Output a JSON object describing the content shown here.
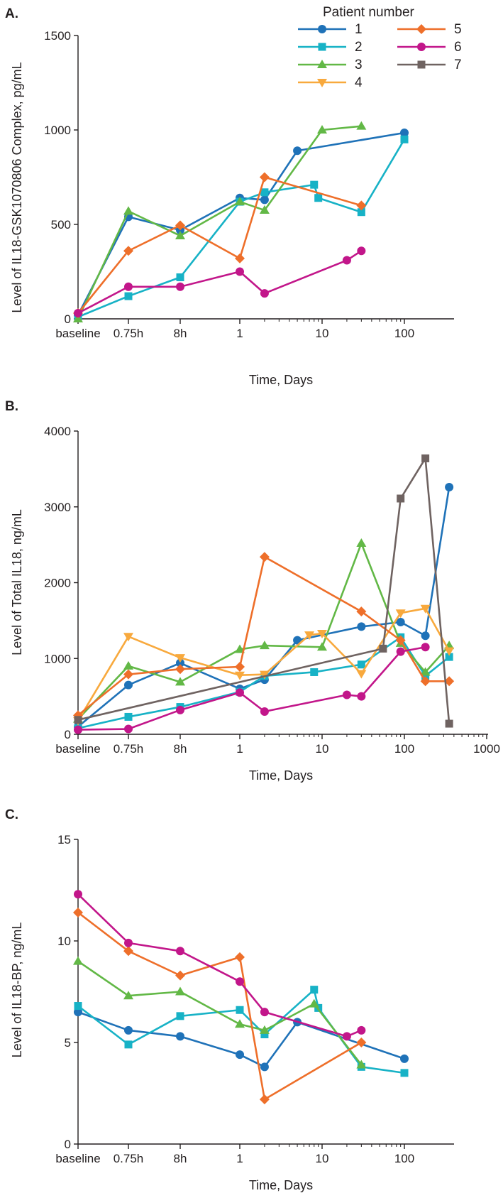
{
  "legend": {
    "title": "Patient number",
    "entries": [
      {
        "name": "1",
        "color": "#1f72b8",
        "marker": "circle"
      },
      {
        "name": "2",
        "color": "#17b2c6",
        "marker": "square"
      },
      {
        "name": "3",
        "color": "#62b846",
        "marker": "triangle-up"
      },
      {
        "name": "4",
        "color": "#f8a93d",
        "marker": "triangle-down"
      },
      {
        "name": "5",
        "color": "#ee6f2a",
        "marker": "diamond"
      },
      {
        "name": "6",
        "color": "#c2168a",
        "marker": "circle"
      },
      {
        "name": "7",
        "color": "#6f6361",
        "marker": "square"
      }
    ]
  },
  "chart_data": [
    {
      "panel": "A.",
      "type": "line",
      "ylabel": "Level of IL18-GSK1070806 Complex, pg/mL",
      "xlabel": "Time, Days",
      "x_scale": "log",
      "x_ticks": [
        {
          "label": "baseline"
        },
        {
          "label": "0.75h"
        },
        {
          "label": "8h"
        },
        {
          "label": "1"
        },
        {
          "label": "10"
        },
        {
          "label": "100"
        }
      ],
      "ylim": [
        0,
        1500
      ],
      "y_ticks": [
        0,
        500,
        1000,
        1500
      ],
      "series": [
        {
          "name": "1",
          "points": [
            [
              "baseline",
              20
            ],
            [
              "0.75h",
              540
            ],
            [
              "8h",
              470
            ],
            [
              1,
              640
            ],
            [
              2,
              630
            ],
            [
              5,
              890
            ],
            [
              100,
              985
            ]
          ]
        },
        {
          "name": "2",
          "points": [
            [
              "baseline",
              10
            ],
            [
              "0.75h",
              120
            ],
            [
              "8h",
              220
            ],
            [
              1,
              620
            ],
            [
              2,
              670
            ],
            [
              8,
              710
            ],
            [
              9,
              640
            ],
            [
              30,
              565
            ],
            [
              100,
              950
            ]
          ]
        },
        {
          "name": "3",
          "points": [
            [
              "baseline",
              0
            ],
            [
              "0.75h",
              570
            ],
            [
              "8h",
              440
            ],
            [
              1,
              620
            ],
            [
              2,
              575
            ],
            [
              10,
              1000
            ],
            [
              30,
              1020
            ]
          ]
        },
        {
          "name": "5",
          "points": [
            [
              "baseline",
              30
            ],
            [
              "0.75h",
              360
            ],
            [
              "8h",
              495
            ],
            [
              1,
              320
            ],
            [
              2,
              750
            ],
            [
              30,
              600
            ]
          ]
        },
        {
          "name": "6",
          "points": [
            [
              "baseline",
              30
            ],
            [
              "0.75h",
              170
            ],
            [
              "8h",
              170
            ],
            [
              1,
              250
            ],
            [
              2,
              135
            ],
            [
              20,
              310
            ],
            [
              30,
              360
            ]
          ]
        }
      ]
    },
    {
      "panel": "B.",
      "type": "line",
      "ylabel": "Level of Total IL18, ng/mL",
      "xlabel": "Time, Days",
      "x_scale": "log",
      "x_ticks": [
        {
          "label": "baseline"
        },
        {
          "label": "0.75h"
        },
        {
          "label": "8h"
        },
        {
          "label": "1"
        },
        {
          "label": "10"
        },
        {
          "label": "100"
        },
        {
          "label": "1000"
        }
      ],
      "ylim": [
        0,
        4000
      ],
      "y_ticks": [
        0,
        1000,
        2000,
        3000,
        4000
      ],
      "series": [
        {
          "name": "1",
          "points": [
            [
              "baseline",
              100
            ],
            [
              "0.75h",
              650
            ],
            [
              "8h",
              940
            ],
            [
              1,
              600
            ],
            [
              2,
              720
            ],
            [
              5,
              1240
            ],
            [
              30,
              1420
            ],
            [
              90,
              1480
            ],
            [
              180,
              1300
            ],
            [
              350,
              3260
            ]
          ]
        },
        {
          "name": "2",
          "points": [
            [
              "baseline",
              80
            ],
            [
              "0.75h",
              230
            ],
            [
              "8h",
              360
            ],
            [
              1,
              560
            ],
            [
              2,
              770
            ],
            [
              8,
              820
            ],
            [
              30,
              920
            ],
            [
              90,
              1280
            ],
            [
              180,
              770
            ],
            [
              350,
              1020
            ]
          ]
        },
        {
          "name": "3",
          "points": [
            [
              "baseline",
              200
            ],
            [
              "0.75h",
              900
            ],
            [
              "8h",
              690
            ],
            [
              1,
              1120
            ],
            [
              2,
              1170
            ],
            [
              10,
              1150
            ],
            [
              30,
              2520
            ],
            [
              90,
              1200
            ],
            [
              180,
              820
            ],
            [
              350,
              1170
            ]
          ]
        },
        {
          "name": "4",
          "points": [
            [
              "baseline",
              180
            ],
            [
              "0.75h",
              1290
            ],
            [
              "8h",
              1010
            ],
            [
              1,
              780
            ],
            [
              2,
              790
            ],
            [
              7,
              1310
            ],
            [
              10,
              1330
            ],
            [
              30,
              800
            ],
            [
              90,
              1600
            ],
            [
              180,
              1660
            ],
            [
              350,
              1100
            ]
          ]
        },
        {
          "name": "5",
          "points": [
            [
              "baseline",
              250
            ],
            [
              "0.75h",
              790
            ],
            [
              "8h",
              860
            ],
            [
              1,
              890
            ],
            [
              2,
              2340
            ],
            [
              30,
              1620
            ],
            [
              90,
              1240
            ],
            [
              180,
              700
            ],
            [
              350,
              700
            ]
          ]
        },
        {
          "name": "6",
          "points": [
            [
              "baseline",
              60
            ],
            [
              "0.75h",
              70
            ],
            [
              "8h",
              320
            ],
            [
              1,
              550
            ],
            [
              2,
              300
            ],
            [
              20,
              520
            ],
            [
              30,
              500
            ],
            [
              90,
              1090
            ],
            [
              180,
              1150
            ]
          ]
        },
        {
          "name": "7",
          "points": [
            [
              "baseline",
              190
            ],
            [
              55,
              1130
            ],
            [
              90,
              3110
            ],
            [
              180,
              3640
            ],
            [
              350,
              140
            ]
          ]
        }
      ]
    },
    {
      "panel": "C.",
      "type": "line",
      "ylabel": "Level of IL18-BP, ng/mL",
      "xlabel": "Time, Days",
      "x_scale": "log",
      "x_ticks": [
        {
          "label": "baseline"
        },
        {
          "label": "0.75h"
        },
        {
          "label": "8h"
        },
        {
          "label": "1"
        },
        {
          "label": "10"
        },
        {
          "label": "100"
        }
      ],
      "ylim": [
        0,
        15
      ],
      "y_ticks": [
        0,
        5,
        10,
        15
      ],
      "series": [
        {
          "name": "1",
          "points": [
            [
              "baseline",
              6.5
            ],
            [
              "0.75h",
              5.6
            ],
            [
              "8h",
              5.3
            ],
            [
              1,
              4.4
            ],
            [
              2,
              3.8
            ],
            [
              5,
              6.0
            ],
            [
              100,
              4.2
            ]
          ]
        },
        {
          "name": "2",
          "points": [
            [
              "baseline",
              6.8
            ],
            [
              "0.75h",
              4.9
            ],
            [
              "8h",
              6.3
            ],
            [
              1,
              6.6
            ],
            [
              2,
              5.4
            ],
            [
              8,
              7.6
            ],
            [
              9,
              6.7
            ],
            [
              30,
              3.8
            ],
            [
              100,
              3.5
            ]
          ]
        },
        {
          "name": "3",
          "points": [
            [
              "baseline",
              9.0
            ],
            [
              "0.75h",
              7.3
            ],
            [
              "8h",
              7.5
            ],
            [
              1,
              5.9
            ],
            [
              2,
              5.6
            ],
            [
              8,
              6.9
            ],
            [
              30,
              3.9
            ]
          ]
        },
        {
          "name": "5",
          "points": [
            [
              "baseline",
              11.4
            ],
            [
              "0.75h",
              9.5
            ],
            [
              "8h",
              8.3
            ],
            [
              1,
              9.2
            ],
            [
              2,
              2.2
            ],
            [
              30,
              5.0
            ]
          ]
        },
        {
          "name": "6",
          "points": [
            [
              "baseline",
              12.3
            ],
            [
              "0.75h",
              9.9
            ],
            [
              "8h",
              9.5
            ],
            [
              1,
              8.0
            ],
            [
              2,
              6.5
            ],
            [
              20,
              5.3
            ],
            [
              30,
              5.6
            ]
          ]
        }
      ]
    }
  ]
}
